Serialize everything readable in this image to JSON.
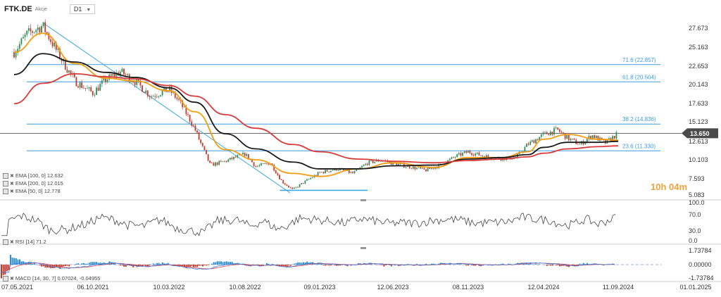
{
  "header": {
    "symbol": "FTK.DE",
    "subtitle": "Akcje",
    "timeframe": "D1"
  },
  "price_badge": {
    "value": "13.650",
    "color": "#4a4a4a"
  },
  "timer": {
    "hours": "10h",
    "minutes": "04m"
  },
  "indicators": {
    "ema100": "EMA [100, 0] 12.632",
    "ema200": "EMA [200, 0] 12.015",
    "ema50": "EMA [50, 0] 12.778",
    "rsi": "RSI [14] 71.2",
    "macd": "MACD [14, 30, 7] 0.07024, -0.04955"
  },
  "colors": {
    "ema50": "#f39c12",
    "ema100": "#1a1a1a",
    "ema200": "#d93a3a",
    "fib": "#3d9be0",
    "trend": "#3da8e0",
    "up": "#2e8b57",
    "down": "#c0392b",
    "macd": "#3a6fd8",
    "signal": "#d84a4a",
    "rsi": "#444444"
  },
  "chart_data": [
    {
      "type": "candlestick",
      "title": "FTK.DE",
      "timeframe": "D1",
      "x_ticks": [
        "07.05.2021",
        "06.10.2021",
        "10.03.2022",
        "10.08.2022",
        "09.01.2023",
        "12.06.2023",
        "08.11.2023",
        "12.04.2024",
        "11.09.2024",
        "01.01.2025"
      ],
      "y_ticks": [
        "27.673",
        "25.163",
        "22.653",
        "20.143",
        "17.633",
        "15.123",
        "12.613",
        "10.103",
        "7.593",
        "5.083"
      ],
      "ylim": [
        5.083,
        29.4
      ],
      "last_price": 13.65,
      "fibonacci_levels": [
        {
          "label": "71.6 (22.857)",
          "value": 22.857
        },
        {
          "label": "61.8 (20.504)",
          "value": 20.504
        },
        {
          "label": "38.2 (14.836)",
          "value": 14.836
        },
        {
          "label": "23.6 (11.330)",
          "value": 11.33
        }
      ],
      "close_series": [
        {
          "date": "2021-05-07",
          "close": 24.5
        },
        {
          "date": "2021-06-01",
          "close": 26.9
        },
        {
          "date": "2021-07-01",
          "close": 28.0
        },
        {
          "date": "2021-08-01",
          "close": 24.2
        },
        {
          "date": "2021-09-01",
          "close": 20.6
        },
        {
          "date": "2021-10-06",
          "close": 19.0
        },
        {
          "date": "2021-11-01",
          "close": 20.8
        },
        {
          "date": "2021-12-01",
          "close": 21.9
        },
        {
          "date": "2022-01-01",
          "close": 20.5
        },
        {
          "date": "2022-02-01",
          "close": 18.6
        },
        {
          "date": "2022-03-10",
          "close": 19.5
        },
        {
          "date": "2022-04-01",
          "close": 17.8
        },
        {
          "date": "2022-05-01",
          "close": 14.2
        },
        {
          "date": "2022-06-01",
          "close": 9.4
        },
        {
          "date": "2022-07-01",
          "close": 9.9
        },
        {
          "date": "2022-08-10",
          "close": 10.9
        },
        {
          "date": "2022-09-01",
          "close": 9.2
        },
        {
          "date": "2022-10-01",
          "close": 9.7
        },
        {
          "date": "2022-10-25",
          "close": 7.1
        },
        {
          "date": "2022-11-15",
          "close": 5.9
        },
        {
          "date": "2022-12-15",
          "close": 7.4
        },
        {
          "date": "2023-01-09",
          "close": 8.4
        },
        {
          "date": "2023-02-15",
          "close": 8.9
        },
        {
          "date": "2023-03-20",
          "close": 8.3
        },
        {
          "date": "2023-04-20",
          "close": 9.7
        },
        {
          "date": "2023-05-20",
          "close": 10.1
        },
        {
          "date": "2023-06-12",
          "close": 9.6
        },
        {
          "date": "2023-07-15",
          "close": 9.2
        },
        {
          "date": "2023-08-15",
          "close": 8.7
        },
        {
          "date": "2023-09-15",
          "close": 9.4
        },
        {
          "date": "2023-10-15",
          "close": 10.6
        },
        {
          "date": "2023-11-08",
          "close": 11.2
        },
        {
          "date": "2023-12-10",
          "close": 10.6
        },
        {
          "date": "2024-01-15",
          "close": 10.3
        },
        {
          "date": "2024-02-15",
          "close": 10.4
        },
        {
          "date": "2024-03-10",
          "close": 12.2
        },
        {
          "date": "2024-04-12",
          "close": 13.5
        },
        {
          "date": "2024-05-10",
          "close": 14.1
        },
        {
          "date": "2024-06-01",
          "close": 13.0
        },
        {
          "date": "2024-06-25",
          "close": 12.2
        },
        {
          "date": "2024-07-20",
          "close": 13.4
        },
        {
          "date": "2024-08-15",
          "close": 12.4
        },
        {
          "date": "2024-09-11",
          "close": 13.65
        }
      ],
      "ema_series": [
        {
          "name": "EMA [50, 0]",
          "points": [
            [
              "2021-05-07",
              24.5
            ],
            [
              "2021-07-01",
              27.0
            ],
            [
              "2021-09-01",
              23.0
            ],
            [
              "2021-11-01",
              21.0
            ],
            [
              "2022-01-01",
              20.6
            ],
            [
              "2022-03-10",
              19.3
            ],
            [
              "2022-05-01",
              16.5
            ],
            [
              "2022-07-01",
              11.5
            ],
            [
              "2022-09-01",
              10.1
            ],
            [
              "2022-11-15",
              8.3
            ],
            [
              "2023-01-09",
              7.9
            ],
            [
              "2023-04-01",
              8.9
            ],
            [
              "2023-06-12",
              9.7
            ],
            [
              "2023-09-01",
              9.1
            ],
            [
              "2023-11-08",
              10.4
            ],
            [
              "2024-01-15",
              10.4
            ],
            [
              "2024-03-10",
              11.2
            ],
            [
              "2024-04-12",
              12.9
            ],
            [
              "2024-06-01",
              13.5
            ],
            [
              "2024-08-01",
              12.9
            ],
            [
              "2024-09-11",
              12.778
            ]
          ]
        },
        {
          "name": "EMA [100, 0]",
          "points": [
            [
              "2021-05-07",
              21.5
            ],
            [
              "2021-07-01",
              24.3
            ],
            [
              "2021-09-01",
              23.2
            ],
            [
              "2021-11-01",
              21.8
            ],
            [
              "2022-01-01",
              21.1
            ],
            [
              "2022-03-10",
              19.7
            ],
            [
              "2022-05-01",
              17.8
            ],
            [
              "2022-07-01",
              13.6
            ],
            [
              "2022-09-01",
              11.6
            ],
            [
              "2022-11-15",
              9.8
            ],
            [
              "2023-01-09",
              8.9
            ],
            [
              "2023-04-01",
              8.9
            ],
            [
              "2023-06-12",
              9.3
            ],
            [
              "2023-09-01",
              9.4
            ],
            [
              "2023-11-08",
              10.2
            ],
            [
              "2024-01-15",
              10.4
            ],
            [
              "2024-03-10",
              10.8
            ],
            [
              "2024-04-12",
              11.8
            ],
            [
              "2024-06-01",
              12.5
            ],
            [
              "2024-08-01",
              12.5
            ],
            [
              "2024-09-11",
              12.632
            ]
          ]
        },
        {
          "name": "EMA [200, 0]",
          "points": [
            [
              "2021-05-07",
              17.6
            ],
            [
              "2021-07-01",
              20.3
            ],
            [
              "2021-09-01",
              21.6
            ],
            [
              "2021-11-01",
              21.2
            ],
            [
              "2022-01-01",
              20.9
            ],
            [
              "2022-03-10",
              20.0
            ],
            [
              "2022-05-01",
              18.6
            ],
            [
              "2022-07-01",
              16.1
            ],
            [
              "2022-09-01",
              14.3
            ],
            [
              "2022-11-15",
              12.2
            ],
            [
              "2023-01-09",
              11.2
            ],
            [
              "2023-04-01",
              10.2
            ],
            [
              "2023-06-12",
              9.9
            ],
            [
              "2023-09-01",
              9.7
            ],
            [
              "2023-11-08",
              10.0
            ],
            [
              "2024-01-15",
              10.2
            ],
            [
              "2024-03-10",
              10.5
            ],
            [
              "2024-04-12",
              11.0
            ],
            [
              "2024-06-01",
              11.6
            ],
            [
              "2024-08-01",
              11.9
            ],
            [
              "2024-09-11",
              12.015
            ]
          ]
        }
      ],
      "trendline": {
        "from": [
          "2021-07-01",
          28.4
        ],
        "to": [
          "2022-11-10",
          5.4
        ]
      },
      "support_line": {
        "from": [
          "2022-10-20",
          5.8
        ],
        "to": [
          "2023-04-20",
          5.8
        ]
      }
    },
    {
      "type": "line",
      "title": "RSI [14]",
      "y_ticks": [
        "100.0",
        "70.0",
        "30.0",
        "0.0"
      ],
      "ylim": [
        0,
        100
      ],
      "last_value": 71.2
    },
    {
      "type": "histogram",
      "title": "MACD [14, 30, 7]",
      "y_ticks": [
        "1.73784",
        "0.00000",
        "-1.73784"
      ],
      "ylim": [
        -1.73784,
        1.73784
      ],
      "macd": 0.07024,
      "signal": -0.04955
    }
  ]
}
